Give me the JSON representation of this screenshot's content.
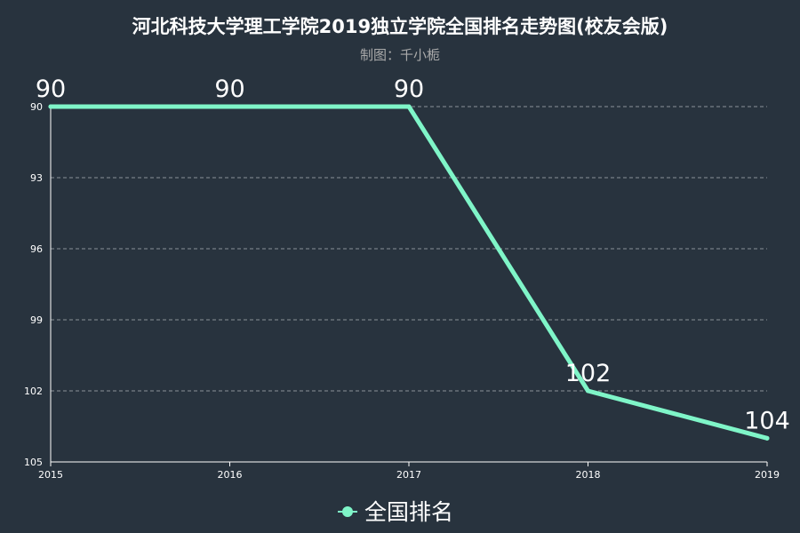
{
  "chart_data": {
    "type": "line",
    "title": "河北科技大学理工学院2019独立学院全国排名走势图(校友会版)",
    "subtitle": "制图：千小栀",
    "categories": [
      "2015",
      "2016",
      "2017",
      "2018",
      "2019"
    ],
    "series": [
      {
        "name": "全国排名",
        "values": [
          90,
          90,
          90,
          102,
          104
        ]
      }
    ],
    "y_axis": {
      "inverse": true,
      "min": 90,
      "max": 105,
      "ticks": [
        "90",
        "93",
        "96",
        "99",
        "102",
        "105"
      ]
    },
    "grid": "horizontal-dashed",
    "legend_position": "bottom-center",
    "colors": {
      "background": "#28333e",
      "line": "#7ff5c8",
      "text": "#ffffff",
      "subtitle": "#aaaaaa",
      "grid": "#8a9098"
    }
  }
}
